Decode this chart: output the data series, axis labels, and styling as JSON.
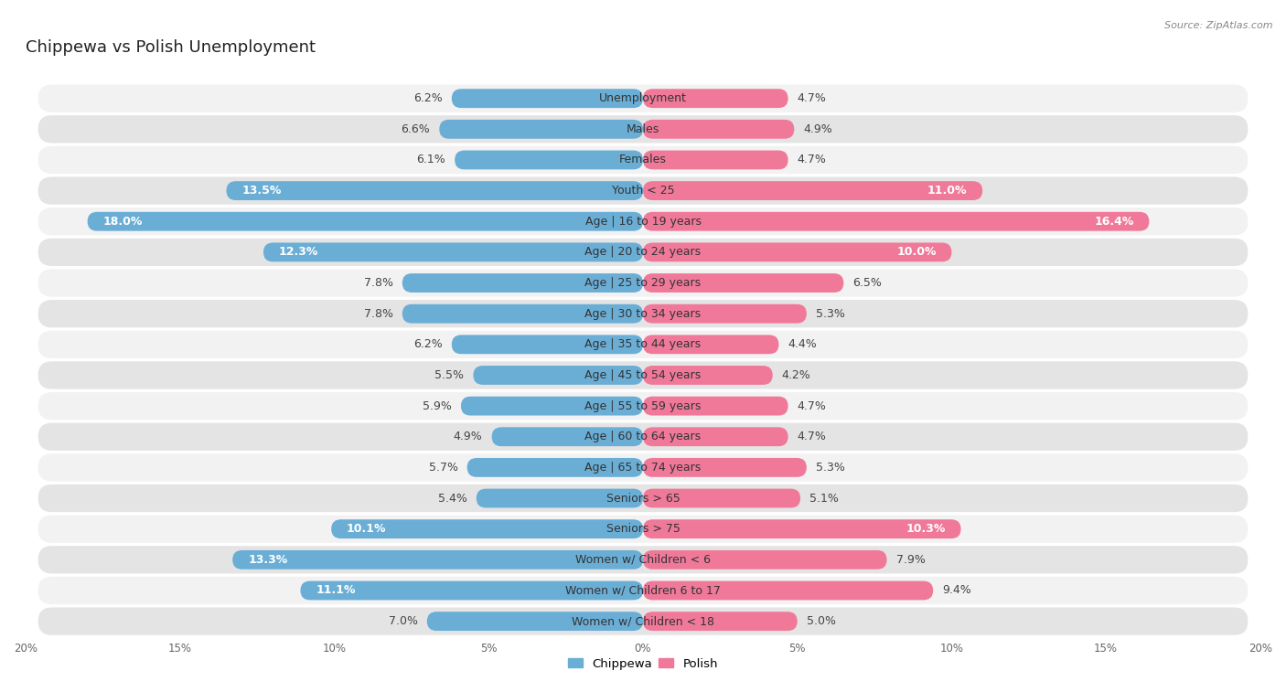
{
  "title": "Chippewa vs Polish Unemployment",
  "source": "Source: ZipAtlas.com",
  "categories": [
    "Unemployment",
    "Males",
    "Females",
    "Youth < 25",
    "Age | 16 to 19 years",
    "Age | 20 to 24 years",
    "Age | 25 to 29 years",
    "Age | 30 to 34 years",
    "Age | 35 to 44 years",
    "Age | 45 to 54 years",
    "Age | 55 to 59 years",
    "Age | 60 to 64 years",
    "Age | 65 to 74 years",
    "Seniors > 65",
    "Seniors > 75",
    "Women w/ Children < 6",
    "Women w/ Children 6 to 17",
    "Women w/ Children < 18"
  ],
  "chippewa": [
    6.2,
    6.6,
    6.1,
    13.5,
    18.0,
    12.3,
    7.8,
    7.8,
    6.2,
    5.5,
    5.9,
    4.9,
    5.7,
    5.4,
    10.1,
    13.3,
    11.1,
    7.0
  ],
  "polish": [
    4.7,
    4.9,
    4.7,
    11.0,
    16.4,
    10.0,
    6.5,
    5.3,
    4.4,
    4.2,
    4.7,
    4.7,
    5.3,
    5.1,
    10.3,
    7.9,
    9.4,
    5.0
  ],
  "chippewa_color": "#6aaed6",
  "polish_color": "#f0799a",
  "background_color": "#ffffff",
  "row_color_light": "#f2f2f2",
  "row_color_dark": "#e4e4e4",
  "xlim": 20.0,
  "bar_height": 0.62,
  "white_label_threshold": 9.5,
  "legend_chippewa": "Chippewa",
  "legend_polish": "Polish",
  "title_fontsize": 13,
  "label_fontsize": 9,
  "category_fontsize": 9,
  "axis_fontsize": 8.5
}
